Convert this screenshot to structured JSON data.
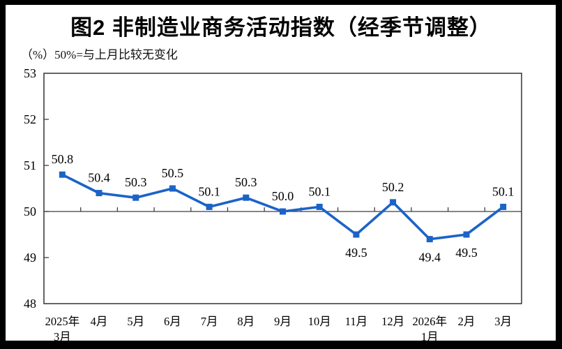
{
  "window": {
    "title": "图2 非制造业商务活动指数（经季节调整）",
    "subtitle": "（%）50%=与上月比较无变化"
  },
  "colors": {
    "line": "#1B63C8",
    "marker": "#1B63C8",
    "axis": "#3F3F3F",
    "text": "#000000",
    "background": "#FFFFFF",
    "outer_border": "#000000"
  },
  "chart_data": {
    "type": "line",
    "title": "图2 非制造业商务活动指数（经季节调整）",
    "subtitle": "（%）50%=与上月比较无变化",
    "unit": "%",
    "categories": [
      "2025年3月",
      "4月",
      "5月",
      "6月",
      "7月",
      "8月",
      "9月",
      "10月",
      "11月",
      "12月",
      "2026年1月",
      "2月",
      "3月"
    ],
    "tick_labels": [
      [
        "2025年",
        "3月"
      ],
      [
        "4月"
      ],
      [
        "5月"
      ],
      [
        "6月"
      ],
      [
        "7月"
      ],
      [
        "8月"
      ],
      [
        "9月"
      ],
      [
        "10月"
      ],
      [
        "11月"
      ],
      [
        "12月"
      ],
      [
        "2026年",
        "1月"
      ],
      [
        "2月"
      ],
      [
        "3月"
      ]
    ],
    "values": [
      50.8,
      50.4,
      50.3,
      50.5,
      50.1,
      50.3,
      50.0,
      50.1,
      49.5,
      50.2,
      49.4,
      49.5,
      50.1
    ],
    "value_labels": [
      "50.8",
      "50.4",
      "50.3",
      "50.5",
      "50.1",
      "50.3",
      "50.0",
      "50.1",
      "49.5",
      "50.2",
      "49.4",
      "49.5",
      "50.1"
    ],
    "label_position": [
      "above",
      "above",
      "above",
      "above",
      "above",
      "above",
      "above",
      "above",
      "below",
      "above",
      "below",
      "below",
      "above"
    ],
    "ylim": [
      48,
      53
    ],
    "yticks": [
      53,
      52,
      51,
      50,
      49,
      48
    ],
    "reference_line": 50,
    "marker": "square",
    "grid": "off",
    "legend": "none"
  }
}
